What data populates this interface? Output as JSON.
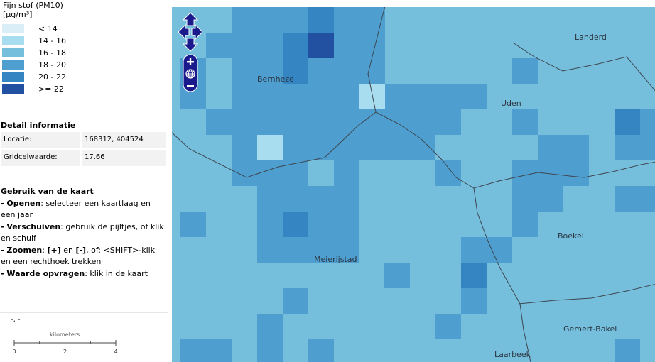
{
  "legend": {
    "title_line1": "Fijn stof (PM10)",
    "title_line2": "[µg/m³]",
    "items": [
      {
        "label": "< 14",
        "color": "#d9eef6"
      },
      {
        "label": "14 - 16",
        "color": "#a8dcef"
      },
      {
        "label": "16 - 18",
        "color": "#75bfdc"
      },
      {
        "label": "18 - 20",
        "color": "#4e9fd0"
      },
      {
        "label": "20 - 22",
        "color": "#3485c1"
      },
      {
        "label": ">= 22",
        "color": "#2151a0"
      }
    ]
  },
  "detail": {
    "title": "Detail informatie",
    "location_key": "Locatie:",
    "location_value": "168312, 404524",
    "grid_key": "Gridcelwaarde:",
    "grid_value": "17.66"
  },
  "usage": {
    "title": "Gebruik van de kaart",
    "open_term": "- Openen",
    "open_text": ": selecteer een kaartlaag en een jaar",
    "pan_term": "- Verschuiven",
    "pan_text": ": gebruik de pijltjes, of klik en schuif",
    "zoom_term": "- Zoomen",
    "zoom_text_a": ": ",
    "zoom_plus": "[+]",
    "zoom_text_b": " en ",
    "zoom_minus": "[-]",
    "zoom_text_c": ", of: <SHIFT>-klik en een rechthoek trekken",
    "query_term": "- Waarde opvragen",
    "query_text": ": klik in de kaart"
  },
  "coords": "-, -",
  "scale": {
    "label": "kilometers",
    "ticks": [
      "0",
      "2",
      "4"
    ]
  },
  "towns": {
    "bernheze": "Bernheze",
    "landerd": "Landerd",
    "uden": "Uden",
    "boekel": "Boekel",
    "meierijstad": "Meierijstad",
    "gemert_bakel": "Gemert-Bakel",
    "laarbeek": "Laarbeek"
  },
  "map_colors": {
    "base": "#75bfdc",
    "c18": "#4e9fd0",
    "c20": "#3485c1",
    "c22": "#2151a0",
    "c14": "#a8dcef",
    "control": "#1a1a8c"
  }
}
